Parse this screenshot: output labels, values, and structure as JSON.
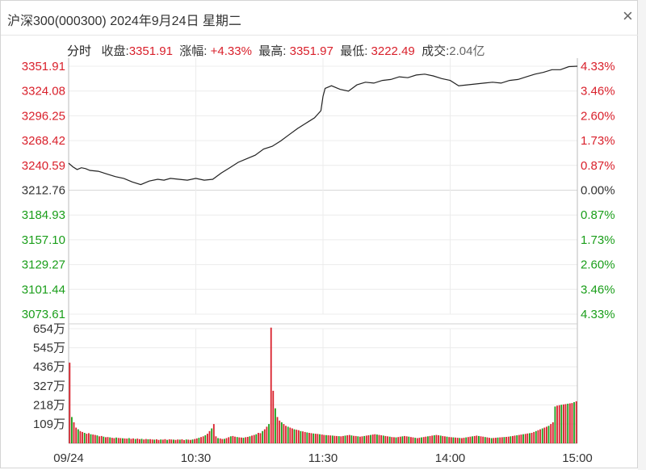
{
  "window": {
    "title": "沪深300(000300) 2024年9月24日 星期二",
    "close_glyph": "×"
  },
  "stats": {
    "mode_label": "分时",
    "close_label": "收盘:",
    "close_value": "3351.91",
    "change_label": "涨幅:",
    "change_value": "+4.33%",
    "high_label": "最高:",
    "high_value": "3351.97",
    "low_label": "最低:",
    "low_value": "3222.49",
    "turnover_label": "成交:",
    "turnover_value": "2.04亿"
  },
  "colors": {
    "up": "#d9202b",
    "down": "#1a9e1a",
    "flat": "#333333",
    "line": "#222222",
    "grid": "#ececec",
    "axis": "#bbbbbb"
  },
  "chart_data": [
    {
      "type": "line",
      "x_labels": [
        "09/24",
        "10:30",
        "11:30",
        "14:00",
        "15:00"
      ],
      "y_labels_left": [
        "3351.91",
        "3324.08",
        "3296.25",
        "3268.42",
        "3240.59",
        "3212.76",
        "3184.93",
        "3157.10",
        "3129.27",
        "3101.44",
        "3073.61"
      ],
      "y_labels_right": [
        "4.33%",
        "3.46%",
        "2.60%",
        "1.73%",
        "0.87%",
        "0.00%",
        "0.87%",
        "1.73%",
        "2.60%",
        "3.46%",
        "4.33%"
      ],
      "ylim": [
        3073.61,
        3351.91
      ],
      "prev_close": 3212.76,
      "x_range": [
        0,
        240
      ],
      "series": [
        {
          "x": [
            0,
            2,
            4,
            6,
            8,
            10,
            14,
            18,
            22,
            26,
            30,
            34,
            38,
            42,
            45,
            48,
            52,
            56,
            60,
            64,
            68,
            72,
            76,
            80,
            84,
            88,
            92,
            96,
            100,
            104,
            108,
            112,
            116,
            119,
            120,
            121,
            124,
            128,
            132,
            136,
            140,
            144,
            148,
            152,
            156,
            160,
            164,
            168,
            172,
            176,
            180,
            184,
            188,
            192,
            196,
            200,
            204,
            208,
            212,
            216,
            220,
            224,
            228,
            232,
            236,
            240
          ],
          "y": [
            3243,
            3239,
            3236,
            3238,
            3237,
            3235,
            3234,
            3231,
            3228,
            3226,
            3222,
            3219,
            3223,
            3225,
            3224,
            3226,
            3225,
            3224,
            3226,
            3224,
            3225,
            3232,
            3238,
            3244,
            3248,
            3252,
            3259,
            3262,
            3268,
            3275,
            3282,
            3288,
            3294,
            3302,
            3318,
            3327,
            3330,
            3326,
            3324,
            3331,
            3334,
            3333,
            3336,
            3337,
            3340,
            3339,
            3342,
            3343,
            3341,
            3338,
            3336,
            3330,
            3331,
            3332,
            3333,
            3334,
            3333,
            3336,
            3337,
            3340,
            3343,
            3345,
            3348,
            3348,
            3351.5,
            3351.91
          ]
        }
      ]
    },
    {
      "type": "bar",
      "y_labels_left": [
        "654万",
        "545万",
        "436万",
        "327万",
        "218万",
        "109万"
      ],
      "ylim": [
        0,
        654
      ],
      "unit": "万",
      "x_range": [
        0,
        240
      ],
      "values": [
        460,
        150,
        120,
        90,
        80,
        70,
        65,
        60,
        55,
        58,
        52,
        50,
        48,
        45,
        40,
        42,
        38,
        35,
        36,
        34,
        32,
        30,
        33,
        31,
        30,
        29,
        28,
        27,
        30,
        26,
        28,
        25,
        27,
        24,
        26,
        22,
        25,
        23,
        24,
        22,
        21,
        23,
        20,
        22,
        21,
        24,
        20,
        23,
        22,
        21,
        20,
        22,
        21,
        23,
        19,
        22,
        21,
        20,
        22,
        25,
        28,
        32,
        36,
        40,
        46,
        55,
        70,
        85,
        110,
        40,
        30,
        28,
        25,
        26,
        30,
        35,
        40,
        42,
        38,
        36,
        34,
        33,
        32,
        35,
        37,
        40,
        44,
        48,
        52,
        60,
        58,
        70,
        80,
        95,
        110,
        660,
        300,
        200,
        150,
        130,
        120,
        110,
        100,
        95,
        90,
        85,
        80,
        78,
        75,
        70,
        68,
        65,
        62,
        60,
        58,
        56,
        55,
        54,
        52,
        50,
        48,
        47,
        46,
        45,
        44,
        43,
        42,
        41,
        40,
        42,
        44,
        46,
        48,
        45,
        43,
        42,
        40,
        38,
        40,
        42,
        44,
        46,
        48,
        50,
        52,
        50,
        48,
        46,
        44,
        42,
        40,
        38,
        36,
        35,
        34,
        36,
        38,
        40,
        42,
        40,
        38,
        36,
        34,
        32,
        30,
        32,
        34,
        36,
        38,
        40,
        42,
        44,
        46,
        48,
        46,
        44,
        42,
        40,
        38,
        36,
        35,
        34,
        33,
        32,
        31,
        30,
        32,
        34,
        36,
        38,
        40,
        42,
        44,
        42,
        40,
        38,
        36,
        34,
        32,
        30,
        31,
        32,
        33,
        34,
        35,
        36,
        37,
        38,
        40,
        42,
        44,
        46,
        48,
        50,
        52,
        54,
        56,
        58,
        60,
        65,
        70,
        75,
        80,
        85,
        90,
        95,
        100,
        110,
        120,
        210,
        215,
        218,
        220,
        222,
        224,
        226,
        228,
        230,
        235,
        240
      ]
    }
  ]
}
